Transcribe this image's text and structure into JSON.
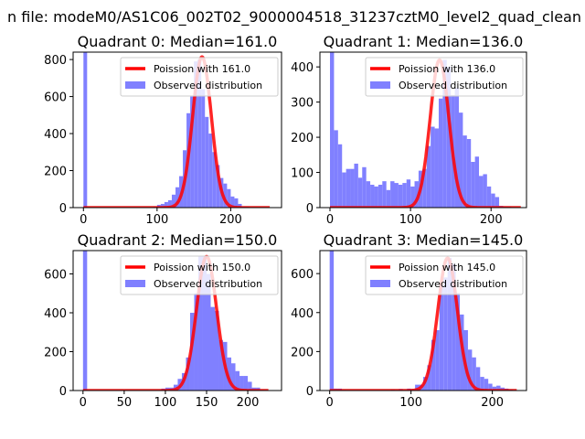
{
  "chart_data": {
    "suptitle": "n file: modeM0/AS1C06_002T02_9000004518_31237cztM0_level2_quad_clean",
    "type": "bar",
    "bin_width": 5,
    "colors": {
      "hist": "#8080ff",
      "curve": "#ff0000"
    },
    "panels": [
      {
        "title": "Quadrant 0: Median=161.0",
        "legend": [
          "Poission with 161.0",
          "Observed distribution"
        ],
        "legend_position": "upper right",
        "xlim": [
          -14,
          269
        ],
        "ylim": [
          0,
          840
        ],
        "xticks": [
          0,
          100,
          200
        ],
        "yticks": [
          0,
          200,
          400,
          600,
          800
        ],
        "curve": {
          "lambda": 161,
          "peak": 815,
          "x_range": [
            0,
            253
          ]
        },
        "bins": [
          0,
          95,
          100,
          105,
          110,
          115,
          120,
          125,
          130,
          135,
          140,
          145,
          150,
          155,
          160,
          165,
          170,
          175,
          180,
          185,
          190,
          195,
          200,
          205,
          210,
          215,
          220
        ],
        "counts": [
          2000,
          5,
          15,
          20,
          30,
          40,
          70,
          110,
          170,
          310,
          510,
          600,
          790,
          800,
          640,
          490,
          400,
          300,
          230,
          160,
          130,
          100,
          60,
          50,
          20,
          5,
          5
        ]
      },
      {
        "title": "Quadrant 1: Median=136.0",
        "legend": [
          "Poission with 136.0",
          "Observed distribution"
        ],
        "legend_position": "upper right",
        "xlim": [
          -12.5,
          244
        ],
        "ylim": [
          0,
          442
        ],
        "xticks": [
          0,
          100,
          200
        ],
        "yticks": [
          0,
          100,
          200,
          300,
          400
        ],
        "curve": {
          "lambda": 136,
          "peak": 420,
          "x_range": [
            0,
            237
          ]
        },
        "bins": [
          0,
          5,
          10,
          15,
          20,
          25,
          30,
          35,
          40,
          45,
          50,
          55,
          60,
          65,
          70,
          75,
          80,
          85,
          90,
          95,
          100,
          105,
          110,
          115,
          120,
          125,
          130,
          135,
          140,
          145,
          150,
          155,
          160,
          165,
          170,
          175,
          180,
          185,
          190,
          195,
          200,
          205,
          210,
          215,
          220
        ],
        "counts": [
          2000,
          220,
          180,
          100,
          110,
          110,
          125,
          85,
          115,
          75,
          65,
          60,
          65,
          75,
          50,
          75,
          70,
          65,
          70,
          80,
          60,
          75,
          105,
          110,
          175,
          230,
          225,
          310,
          420,
          400,
          320,
          340,
          270,
          205,
          195,
          130,
          145,
          90,
          95,
          60,
          40,
          30,
          5,
          3,
          3
        ]
      },
      {
        "title": "Quadrant 2: Median=150.0",
        "legend": [
          "Poission with 150.0",
          "Observed distribution"
        ],
        "legend_position": "upper right",
        "xlim": [
          -12,
          241
        ],
        "ylim": [
          0,
          720
        ],
        "xticks": [
          0,
          50,
          100,
          150,
          200
        ],
        "yticks": [
          0,
          200,
          400,
          600
        ],
        "curve": {
          "lambda": 150,
          "peak": 690,
          "x_range": [
            0,
            225
          ]
        },
        "bins": [
          0,
          95,
          100,
          105,
          110,
          115,
          120,
          125,
          130,
          135,
          140,
          145,
          150,
          155,
          160,
          165,
          170,
          175,
          180,
          185,
          190,
          195,
          200,
          205,
          210,
          215
        ],
        "counts": [
          2000,
          10,
          15,
          15,
          30,
          60,
          90,
          170,
          400,
          500,
          690,
          690,
          600,
          430,
          410,
          260,
          250,
          170,
          140,
          100,
          75,
          75,
          45,
          15,
          15,
          3
        ]
      },
      {
        "title": "Quadrant 3: Median=145.0",
        "legend": [
          "Poission with 145.0",
          "Observed distribution"
        ],
        "legend_position": "upper right",
        "xlim": [
          -12,
          242
        ],
        "ylim": [
          0,
          718
        ],
        "xticks": [
          0,
          100,
          200
        ],
        "yticks": [
          0,
          200,
          400,
          600
        ],
        "curve": {
          "lambda": 145,
          "peak": 680,
          "x_range": [
            0,
            230
          ]
        },
        "bins": [
          0,
          5,
          10,
          15,
          75,
          80,
          85,
          95,
          100,
          105,
          110,
          115,
          120,
          125,
          130,
          135,
          140,
          145,
          150,
          155,
          160,
          165,
          170,
          175,
          180,
          185,
          190,
          195,
          200,
          205,
          210,
          215,
          220
        ],
        "counts": [
          2000,
          10,
          10,
          3,
          5,
          3,
          8,
          10,
          5,
          30,
          30,
          70,
          130,
          260,
          310,
          540,
          580,
          680,
          650,
          500,
          390,
          310,
          210,
          170,
          120,
          70,
          60,
          35,
          20,
          25,
          15,
          10,
          5
        ]
      }
    ]
  }
}
